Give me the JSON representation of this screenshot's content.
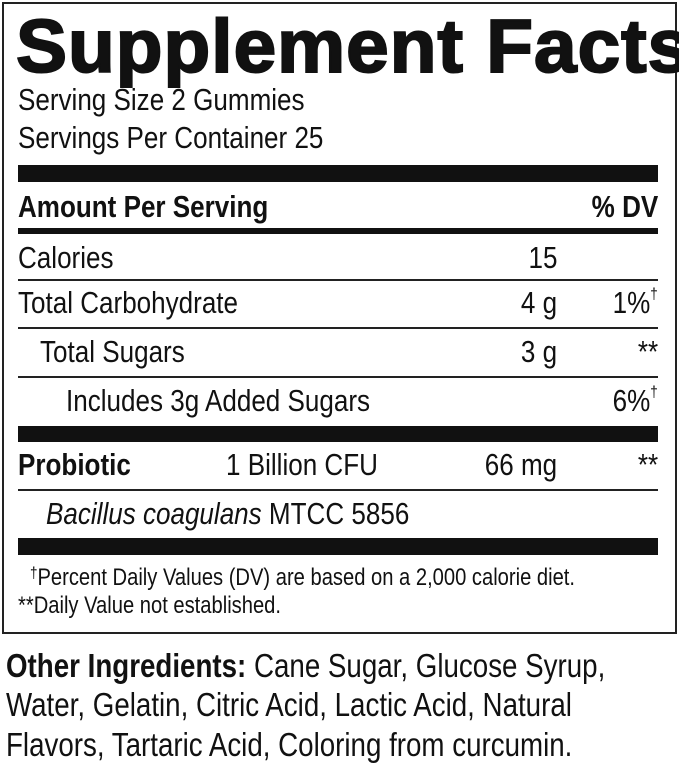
{
  "panel": {
    "title": "Supplement Facts",
    "serving_size": "Serving Size 2 Gummies",
    "servings_per_container": "Servings Per Container 25",
    "header": {
      "amount": "Amount Per Serving",
      "dv": "% DV"
    },
    "rows": [
      {
        "name": "Calories",
        "amount": "15",
        "dv": ""
      },
      {
        "name": "Total Carbohydrate",
        "amount": "4 g",
        "dv": "1%",
        "dv_mark": "†"
      },
      {
        "name": "Total Sugars",
        "amount": "3 g",
        "dv": "**"
      },
      {
        "name": "Includes 3g Added Sugars",
        "amount": "",
        "dv": "6%",
        "dv_mark": "†"
      }
    ],
    "probiotic": {
      "name": "Probiotic",
      "count": "1 Billion CFU",
      "amount": "66 mg",
      "dv": "**",
      "strain_italic": "Bacillus coagulans",
      "strain_code": "MTCC 5856"
    },
    "footnotes": {
      "dagger_mark": "†",
      "dagger": "Percent Daily Values (DV) are based on a 2,000 calorie diet.",
      "double_star": "**Daily Value not established."
    }
  },
  "other_ingredients": {
    "label": "Other Ingredients:",
    "lines": [
      " Cane Sugar, Glucose Syrup,",
      "Water, Gelatin, Citric Acid, Lactic Acid, Natural",
      "Flavors, Tartaric Acid, Coloring from curcumin."
    ]
  }
}
